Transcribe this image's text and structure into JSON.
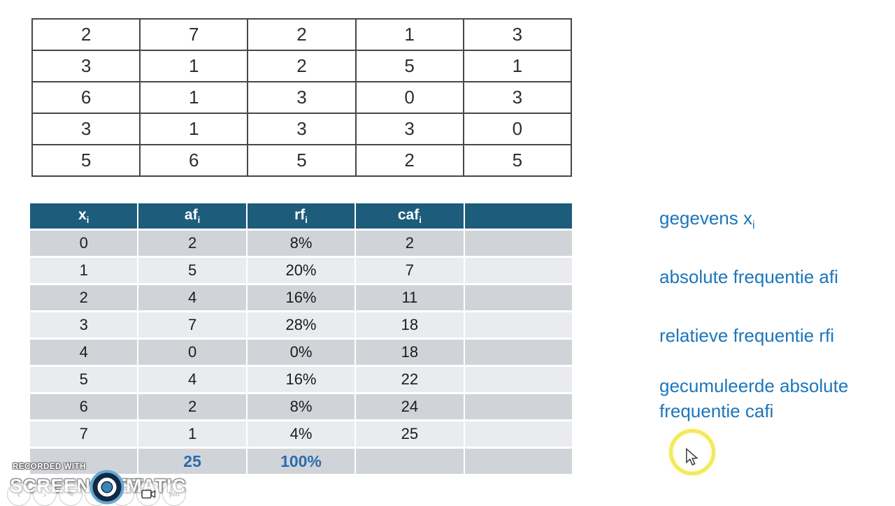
{
  "raw_data_table": {
    "rows": [
      [
        "2",
        "7",
        "2",
        "1",
        "3"
      ],
      [
        "3",
        "1",
        "2",
        "5",
        "1"
      ],
      [
        "6",
        "1",
        "3",
        "0",
        "3"
      ],
      [
        "3",
        "1",
        "3",
        "3",
        "0"
      ],
      [
        "5",
        "6",
        "5",
        "2",
        "5"
      ]
    ]
  },
  "frequency_table": {
    "headers": [
      {
        "base": "x",
        "sub": "i"
      },
      {
        "base": "af",
        "sub": "i"
      },
      {
        "base": "rf",
        "sub": "i"
      },
      {
        "base": "caf",
        "sub": "i"
      },
      {
        "base": "",
        "sub": ""
      }
    ],
    "rows": [
      [
        "0",
        "2",
        "8%",
        "2",
        ""
      ],
      [
        "1",
        "5",
        "20%",
        "7",
        ""
      ],
      [
        "2",
        "4",
        "16%",
        "11",
        ""
      ],
      [
        "3",
        "7",
        "28%",
        "18",
        ""
      ],
      [
        "4",
        "0",
        "0%",
        "18",
        ""
      ],
      [
        "5",
        "4",
        "16%",
        "22",
        ""
      ],
      [
        "6",
        "2",
        "8%",
        "24",
        ""
      ],
      [
        "7",
        "1",
        "4%",
        "25",
        ""
      ]
    ],
    "total_row": [
      "",
      "25",
      "100%",
      "",
      ""
    ]
  },
  "annotations": [
    {
      "text": "gegevens x",
      "sub": "i"
    },
    {
      "text": "absolute frequentie afi",
      "sub": ""
    },
    {
      "text": "relatieve frequentie rfi",
      "sub": ""
    },
    {
      "text": "gecumuleerde absolute frequentie cafi",
      "sub": ""
    }
  ],
  "watermark": {
    "recorded_with": "RECORDED WITH",
    "brand_left": "SCREENCAST",
    "brand_right": "MATIC",
    "you_label": "you"
  },
  "controls": [
    "back",
    "forward",
    "edit",
    "copy",
    "blank",
    "camera",
    "you"
  ],
  "colors": {
    "header_teal": "#1d5c7a",
    "row_dark": "#d0d4d9",
    "row_light": "#e9ebee",
    "accent_blue": "#1b76bb",
    "total_blue": "#2b6cad",
    "cursor_yellow": "#f0e73c",
    "border_dark": "#474747",
    "logo_ring_blue": "#64a9d2",
    "logo_navy": "#122844",
    "logo_dot_blue": "#3e84b8"
  }
}
